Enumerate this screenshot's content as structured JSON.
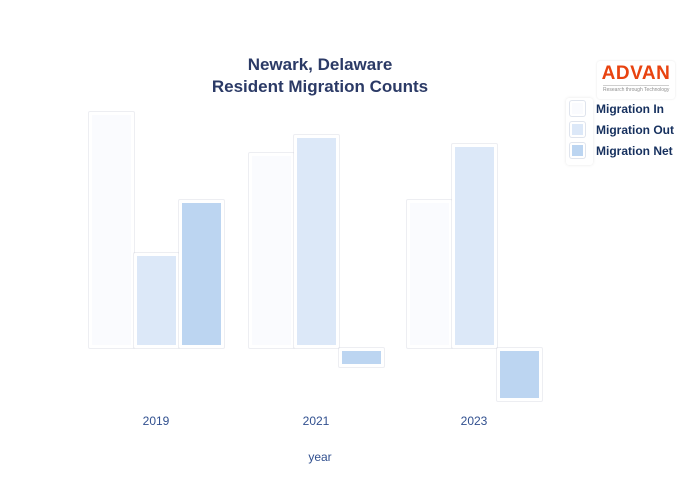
{
  "title": {
    "line1": "Newark, Delaware",
    "line2": "Resident Migration Counts"
  },
  "logo": {
    "text": "ADVAN",
    "tagline": "Research through Technology"
  },
  "colors": {
    "title_text": "#2b3a66",
    "tick_text": "#31508f",
    "legend_text": "#16305e",
    "logo_orange": "#e84310",
    "migration_in": "#fafbfe",
    "migration_out": "#dce8f8",
    "migration_net": "#bcd5f1"
  },
  "chart_data": {
    "type": "bar",
    "title": "Newark, Delaware Resident Migration Counts",
    "xlabel": "year",
    "ylabel": "",
    "categories": [
      "2019",
      "2021",
      "2023"
    ],
    "series": [
      {
        "name": "Migration In",
        "color": "#fafbfe",
        "values": [
          236,
          195,
          148
        ]
      },
      {
        "name": "Migration Out",
        "color": "#dce8f8",
        "values": [
          95,
          213,
          204
        ]
      },
      {
        "name": "Migration Net",
        "color": "#bcd5f1",
        "values": [
          148,
          -19,
          -53
        ]
      }
    ],
    "value_units": "relative bar heights in pixels (no y-axis or value labels rendered)",
    "y_axis_visible": false,
    "gridlines": false,
    "legend_position": "right",
    "baseline": 0
  }
}
